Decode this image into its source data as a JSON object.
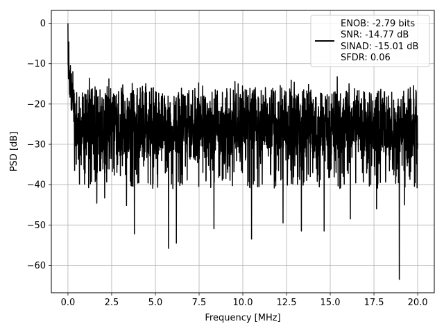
{
  "chart_data": {
    "type": "line",
    "title": "",
    "xlabel": "Frequency [MHz]",
    "ylabel": "PSD [dB]",
    "xlim": [
      -0.95,
      20.95
    ],
    "ylim": [
      -66.8,
      3.2
    ],
    "x_ticks": [
      0.0,
      2.5,
      5.0,
      7.5,
      10.0,
      12.5,
      15.0,
      17.5,
      20.0
    ],
    "x_tick_labels": [
      "0.0",
      "2.5",
      "5.0",
      "7.5",
      "10.0",
      "12.5",
      "15.0",
      "17.5",
      "20.0"
    ],
    "y_ticks": [
      0,
      -10,
      -20,
      -30,
      -40,
      -50,
      -60
    ],
    "y_tick_labels": [
      "0",
      "−10",
      "−20",
      "−30",
      "−40",
      "−50",
      "−60"
    ],
    "grid": true,
    "legend_position": "top-right",
    "legend_lines": [
      "ENOB: -2.79 bits",
      "SNR: -14.77 dB",
      "SINAD: -15.01 dB",
      "SFDR: 0.06"
    ],
    "series": [
      {
        "color": "#000000",
        "x_range": [
          0,
          20
        ],
        "noise_floor": {
          "mean": -26,
          "upper_envelope": -16,
          "lower_envelope": -36
        },
        "peaks": [
          {
            "x": 0.0,
            "y": 0.0
          },
          {
            "x": 0.05,
            "y": -4.6
          },
          {
            "x": 0.08,
            "y": -14.5
          },
          {
            "x": 0.14,
            "y": -10.5
          },
          {
            "x": 0.2,
            "y": -12.5
          },
          {
            "x": 0.28,
            "y": -12.0
          }
        ],
        "dips": [
          {
            "x": 1.65,
            "y": -44.6
          },
          {
            "x": 2.1,
            "y": -43.3
          },
          {
            "x": 3.35,
            "y": -45.2
          },
          {
            "x": 3.8,
            "y": -52.2
          },
          {
            "x": 5.75,
            "y": -55.8
          },
          {
            "x": 6.2,
            "y": -54.5
          },
          {
            "x": 8.35,
            "y": -50.9
          },
          {
            "x": 10.5,
            "y": -53.5
          },
          {
            "x": 12.3,
            "y": -49.5
          },
          {
            "x": 13.35,
            "y": -51.5
          },
          {
            "x": 14.65,
            "y": -51.5
          },
          {
            "x": 16.15,
            "y": -48.5
          },
          {
            "x": 17.65,
            "y": -46.0
          },
          {
            "x": 18.95,
            "y": -63.5
          },
          {
            "x": 19.25,
            "y": -45.0
          }
        ]
      }
    ]
  }
}
